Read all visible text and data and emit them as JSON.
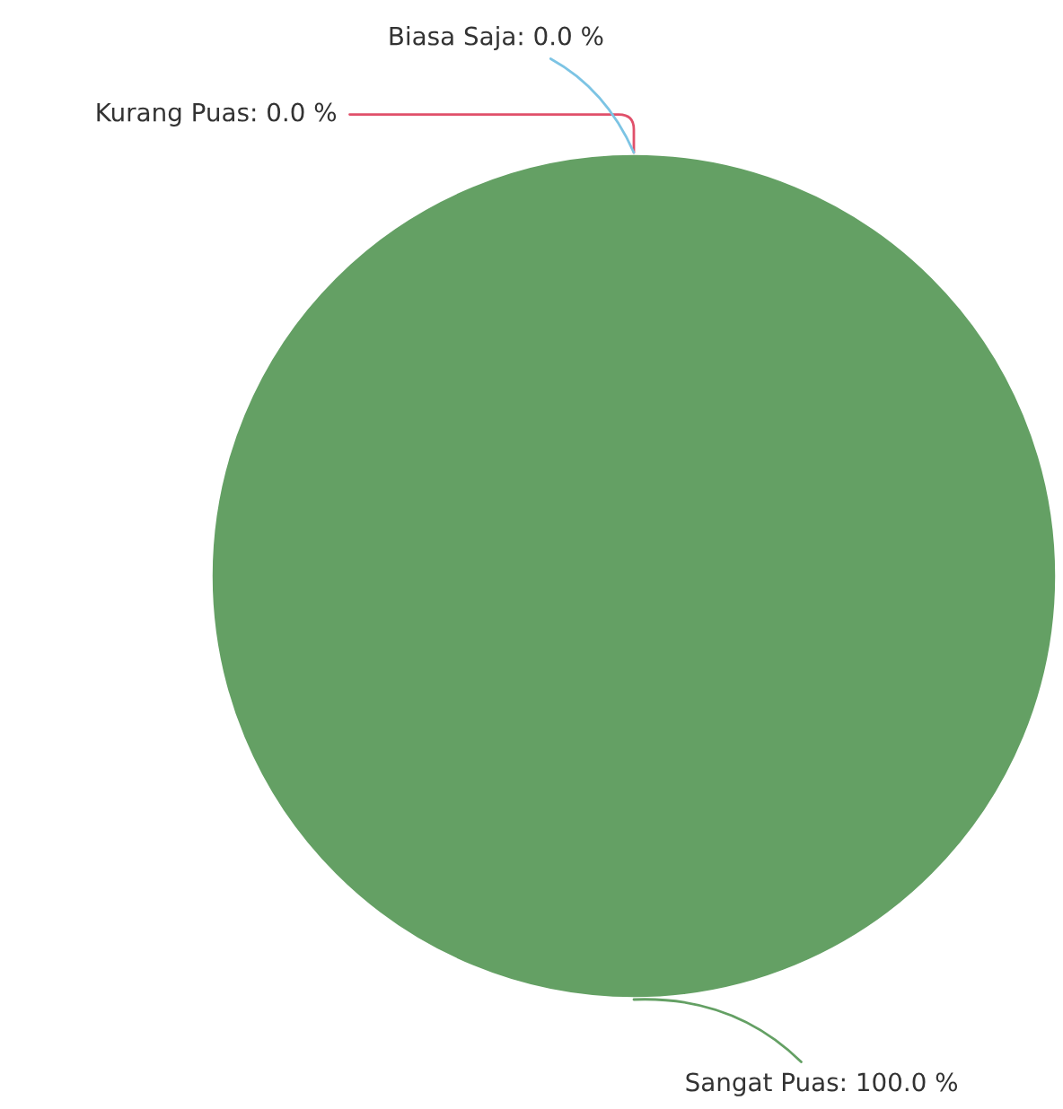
{
  "chart_data": {
    "type": "pie",
    "categories": [
      "Kurang Puas",
      "Biasa Saja",
      "Sangat Puas"
    ],
    "values": [
      0.0,
      0.0,
      100.0
    ],
    "value_labels": [
      ": 0.0 %",
      ": 0.0 %",
      ": 100.0 %"
    ],
    "colors": [
      "#e0506a",
      "#7cc4e4",
      "#64a064"
    ]
  }
}
